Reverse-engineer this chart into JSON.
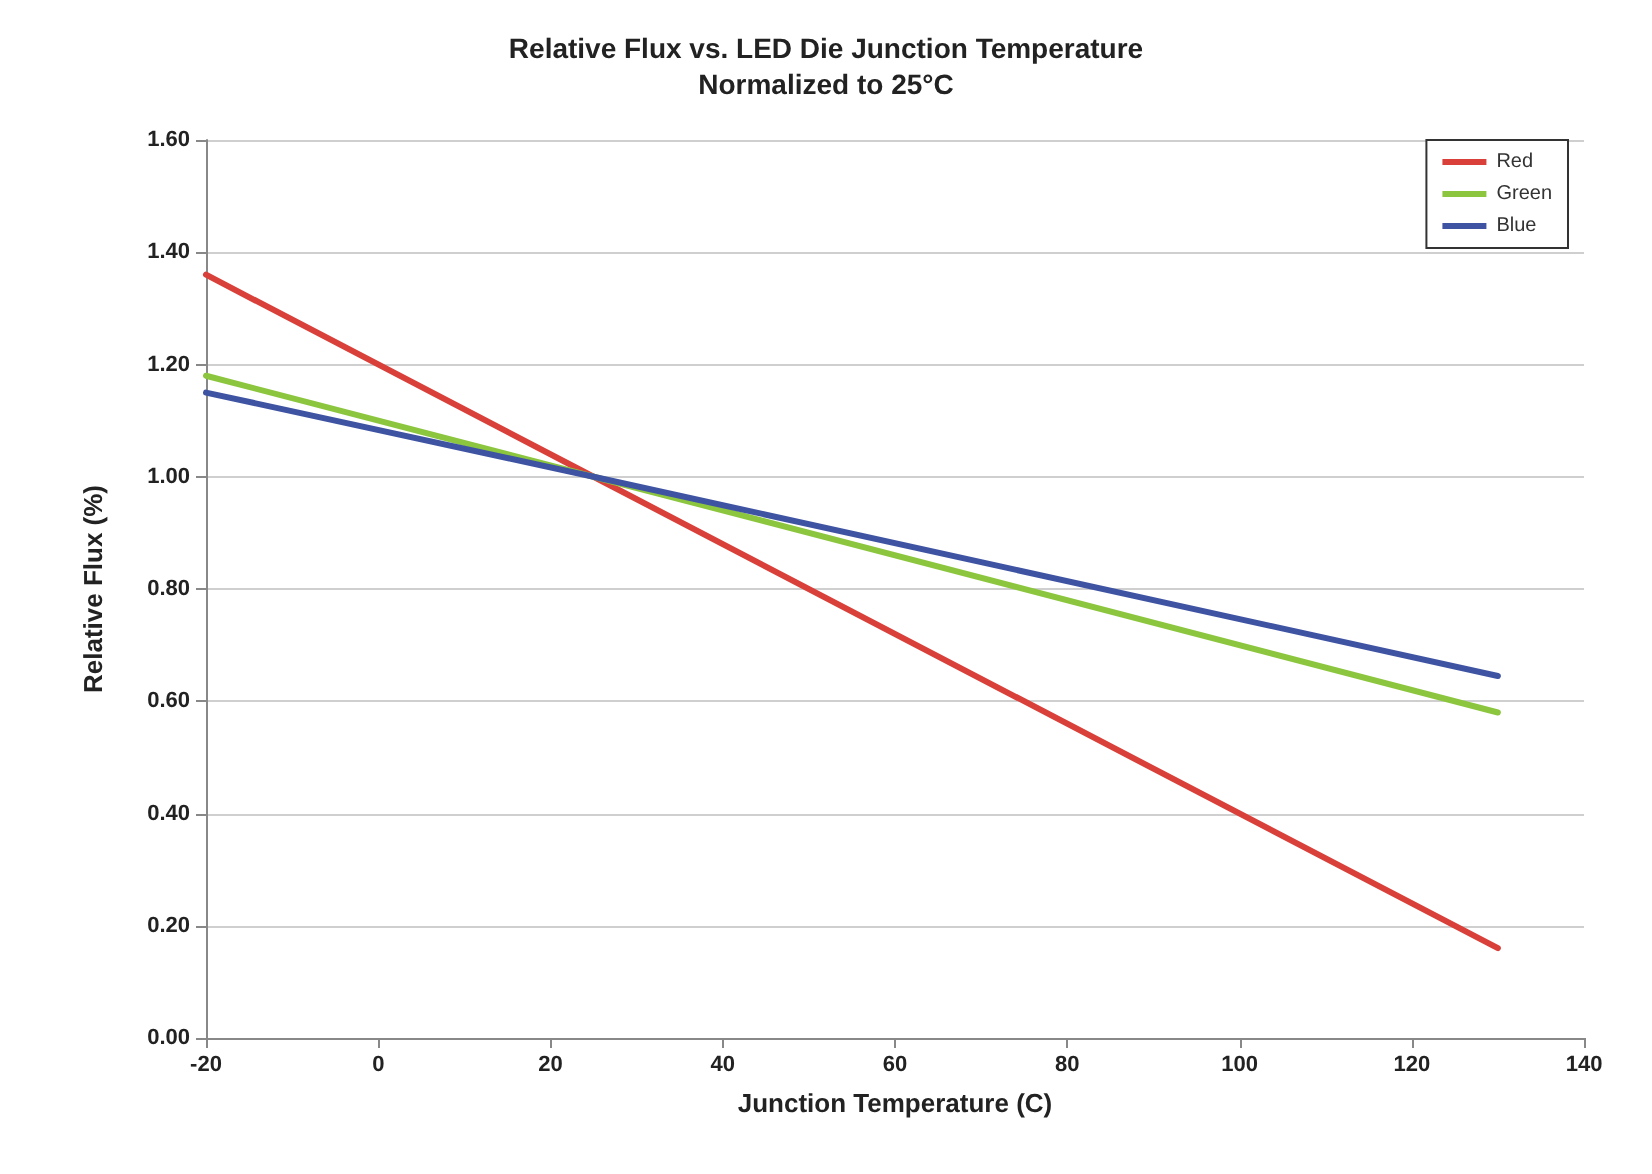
{
  "chart_data": {
    "type": "line",
    "title": "Relative Flux vs. LED Die Junction Temperature",
    "subtitle": "Normalized to 25°C",
    "xlabel": "Junction Temperature (C)",
    "ylabel": "Relative Flux (%)",
    "x": [
      -20,
      25,
      130
    ],
    "series": [
      {
        "name": "Red",
        "color": "#d9403a",
        "values": [
          1.36,
          1.0,
          0.16
        ]
      },
      {
        "name": "Green",
        "color": "#8cc63f",
        "values": [
          1.18,
          1.0,
          0.58
        ]
      },
      {
        "name": "Blue",
        "color": "#3f53a3",
        "values": [
          1.15,
          1.0,
          0.645
        ]
      }
    ],
    "xlim": [
      -20,
      140
    ],
    "xticks": [
      -20,
      0,
      20,
      40,
      60,
      80,
      100,
      120,
      140
    ],
    "ylim": [
      0,
      1.6
    ],
    "yticks": [
      {
        "value": 0,
        "label": "0.00"
      },
      {
        "value": 0.2,
        "label": "0.20"
      },
      {
        "value": 0.4,
        "label": "0.40"
      },
      {
        "value": 0.6,
        "label": "0.60"
      },
      {
        "value": 0.8,
        "label": "0.80"
      },
      {
        "value": 1.0,
        "label": "1.00"
      },
      {
        "value": 1.2,
        "label": "1.20"
      },
      {
        "value": 1.4,
        "label": "1.40"
      },
      {
        "value": 1.6,
        "label": "1.60"
      }
    ],
    "grid": "y",
    "legend": "top right",
    "marker": "none",
    "line_style": "solid"
  }
}
